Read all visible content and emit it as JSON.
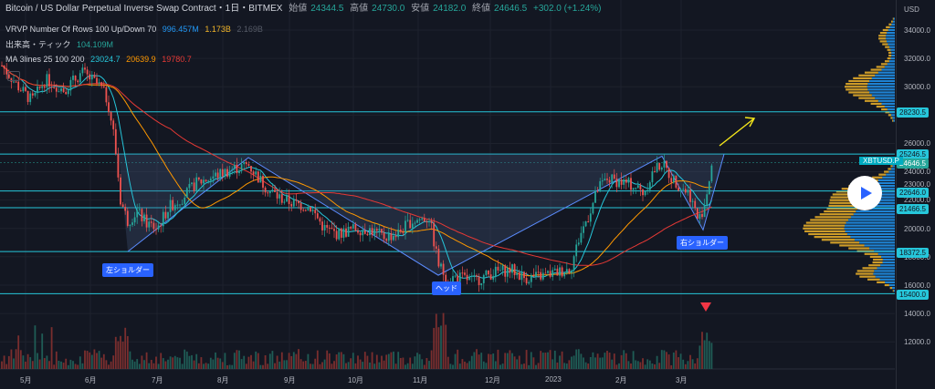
{
  "header": {
    "symbol_title": "Bitcoin / US Dollar Perpetual Inverse Swap Contract・1日・BITMEX",
    "ohlc": [
      {
        "label": "始値",
        "value": "24344.5"
      },
      {
        "label": "高値",
        "value": "24730.0"
      },
      {
        "label": "安値",
        "value": "24182.0"
      },
      {
        "label": "終値",
        "value": "24646.5"
      }
    ],
    "change": "+302.0 (+1.24%)"
  },
  "indicators": {
    "vrvp": {
      "label": "VRVP Number Of Rows 100 Up/Down 70",
      "v1": "996.457M",
      "v2": "1.173B",
      "v3": "2.169B"
    },
    "volume": {
      "label": "出来高・ティック",
      "value": "104.109M"
    },
    "ma": {
      "label": "MA 3lines 25 100 200",
      "v1": "23024.7",
      "v2": "20639.9",
      "v3": "19780.7"
    }
  },
  "axis": {
    "currency": "USD",
    "y_ticks": [
      "34000.0",
      "32000.0",
      "30000.0",
      "26000.0",
      "24000.0",
      "22000.0",
      "20000.0",
      "16000.0",
      "14000.0",
      "12000.0"
    ],
    "x_ticks": [
      "5月",
      "6月",
      "7月",
      "8月",
      "9月",
      "10月",
      "11月",
      "12月",
      "2023",
      "2月",
      "3月"
    ]
  },
  "price_tags": [
    {
      "value": "28230.5",
      "color": "#26c6da"
    },
    {
      "value": "25246.5",
      "color": "#26c6da"
    },
    {
      "value": "24646.5",
      "color": "#26a69a"
    },
    {
      "value": "22646.0",
      "color": "#26c6da"
    },
    {
      "value": "21466.5",
      "color": "#26c6da"
    },
    {
      "value": "18372.5",
      "color": "#26c6da"
    },
    {
      "value": "15400.0",
      "color": "#26c6da"
    }
  ],
  "plain_labels": [
    "23000.0",
    "18000.0"
  ],
  "symbol_tag": "XBTUSD.P",
  "annotations": {
    "left_shoulder": "左ショルダー",
    "head": "ヘッド",
    "right_shoulder": "右ショルダー"
  },
  "colors": {
    "background": "#131722",
    "up": "#26a69a",
    "down": "#ef5350",
    "ma25": "#26c6da",
    "ma100": "#ff9800",
    "ma200": "#e53935",
    "levels": "#26c6da",
    "pattern": "#2962ff",
    "profile_up": "#2196f3",
    "profile_down": "#f0b429"
  },
  "chart_data": {
    "type": "candlestick",
    "title": "Bitcoin / US Dollar Perpetual Inverse Swap Contract・1日・BITMEX",
    "x": [
      "2022-05",
      "2022-06",
      "2022-07",
      "2022-08",
      "2022-09",
      "2022-10",
      "2022-11",
      "2022-12",
      "2023-01",
      "2023-02",
      "2023-03"
    ],
    "approx_close": [
      30000,
      21000,
      23000,
      24000,
      19500,
      20500,
      16500,
      16800,
      23000,
      24500,
      24646.5
    ],
    "horizontal_levels": [
      28230.5,
      25246.5,
      22646.0,
      21466.5,
      18372.5,
      15400.0
    ],
    "moving_averages": [
      {
        "name": "MA 25",
        "last": 23024.7
      },
      {
        "name": "MA 100",
        "last": 20639.9
      },
      {
        "name": "MA 200",
        "last": 19780.7
      }
    ],
    "pattern": "inverse head and shoulders (逆三尊)",
    "ylim": [
      12000,
      35000
    ]
  }
}
